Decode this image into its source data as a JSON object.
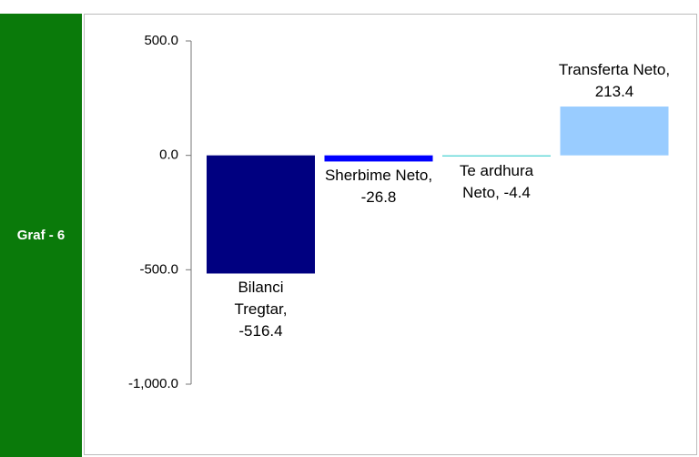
{
  "side_label": "Graf - 6",
  "chart_data": {
    "type": "bar",
    "values": [
      -516.4,
      -26.8,
      -4.4,
      213.4
    ],
    "value_labels": [
      "Bilanci Tregtar, -516.4",
      "Sherbime Neto, -26.8",
      "Te ardhura Neto, -4.4",
      "Transferta Neto, 213.4"
    ],
    "colors": [
      "#000080",
      "#0000ff",
      "#33cccc",
      "#99ccff"
    ],
    "ylim": [
      -1000,
      500
    ],
    "yticks": [
      {
        "value": 500,
        "label": "500.0"
      },
      {
        "value": 0,
        "label": "0.0"
      },
      {
        "value": -500,
        "label": "-500.0"
      },
      {
        "value": -1000,
        "label": "-1,000.0"
      }
    ]
  }
}
